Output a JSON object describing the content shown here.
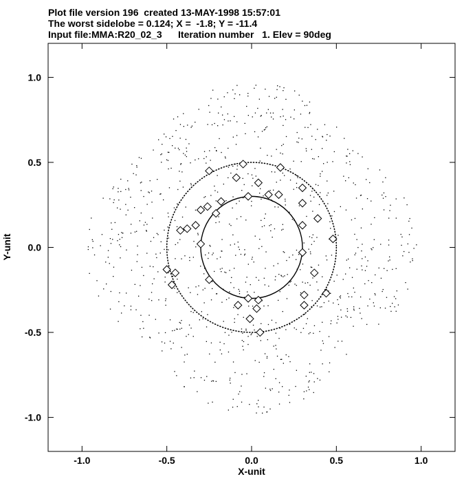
{
  "header": {
    "line1": "Plot file version 196  created 13-MAY-1998 15:57:01",
    "line2": "The worst sidelobe = 0.124; X =  -1.8; Y = -11.4",
    "line3": "Input file:MMA:R20_02_3      Iteration number   1. Elev = 90deg"
  },
  "chart_data": {
    "type": "scatter",
    "xlabel": "X-unit",
    "ylabel": "Y-unit",
    "xlim": [
      -1.2,
      1.2
    ],
    "ylim": [
      -1.2,
      1.2
    ],
    "x_ticks": [
      -1.0,
      -0.5,
      0.0,
      0.5,
      1.0
    ],
    "x_tick_labels": [
      "-1.0",
      "-0.5",
      "0.0",
      "0.5",
      "1.0"
    ],
    "y_ticks": [
      1.0,
      0.5,
      0.0,
      -0.5,
      -1.0
    ],
    "y_tick_labels": [
      "1.0",
      "0.5",
      "0.0",
      "-0.5",
      "-1.0"
    ],
    "grid": false,
    "circles": [
      {
        "cx": 0.0,
        "cy": 0.0,
        "r": 0.3,
        "style": "solid"
      },
      {
        "cx": 0.0,
        "cy": 0.0,
        "r": 0.5,
        "style": "dotted"
      }
    ],
    "diamond_markers": [
      [
        -0.05,
        0.49
      ],
      [
        0.17,
        0.47
      ],
      [
        -0.25,
        0.45
      ],
      [
        -0.09,
        0.41
      ],
      [
        0.04,
        0.38
      ],
      [
        0.3,
        0.35
      ],
      [
        0.16,
        0.31
      ],
      [
        0.1,
        0.31
      ],
      [
        -0.02,
        0.3
      ],
      [
        -0.18,
        0.27
      ],
      [
        0.3,
        0.26
      ],
      [
        -0.26,
        0.24
      ],
      [
        -0.3,
        0.22
      ],
      [
        -0.21,
        0.2
      ],
      [
        0.39,
        0.17
      ],
      [
        -0.33,
        0.13
      ],
      [
        0.3,
        0.13
      ],
      [
        -0.38,
        0.11
      ],
      [
        -0.42,
        0.1
      ],
      [
        0.48,
        0.05
      ],
      [
        -0.3,
        0.02
      ],
      [
        0.3,
        -0.03
      ],
      [
        -0.5,
        -0.13
      ],
      [
        -0.45,
        -0.15
      ],
      [
        0.37,
        -0.15
      ],
      [
        -0.25,
        -0.19
      ],
      [
        -0.47,
        -0.22
      ],
      [
        0.31,
        -0.28
      ],
      [
        0.44,
        -0.27
      ],
      [
        -0.02,
        -0.3
      ],
      [
        0.04,
        -0.31
      ],
      [
        0.31,
        -0.34
      ],
      [
        -0.08,
        -0.34
      ],
      [
        0.03,
        -0.36
      ],
      [
        -0.01,
        -0.42
      ],
      [
        0.05,
        -0.5
      ]
    ],
    "dot_count": 1000,
    "dot_extent": [
      -1.0,
      1.0
    ]
  }
}
